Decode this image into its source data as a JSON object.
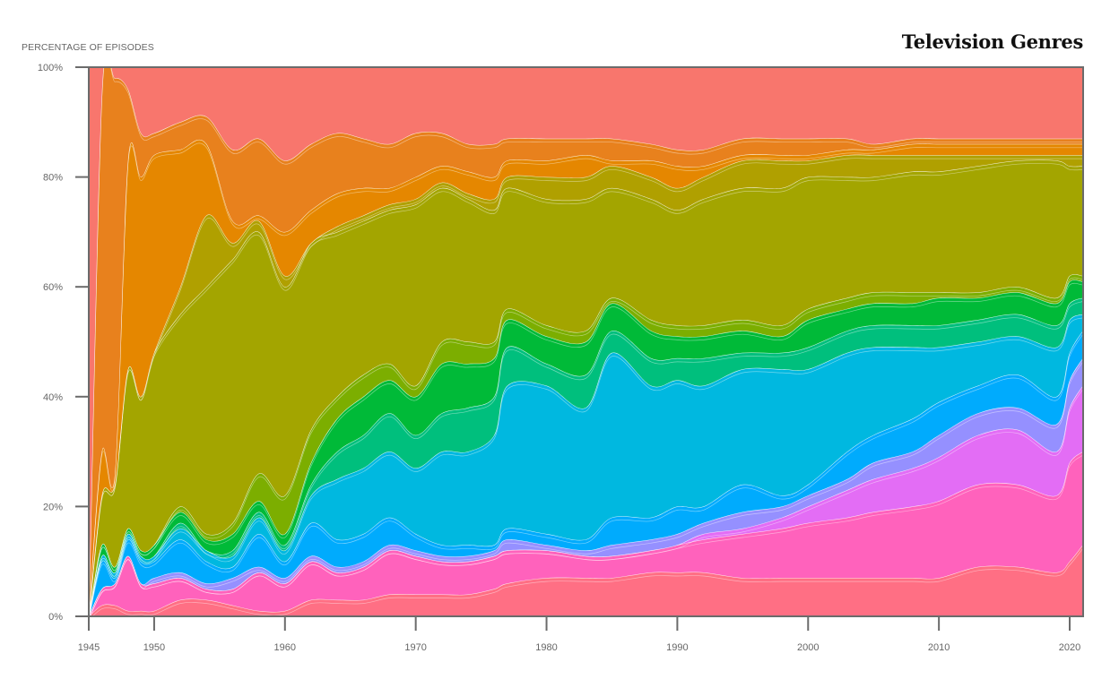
{
  "chart_data": {
    "type": "area",
    "title": "Television Genres",
    "subtitle": "",
    "ylabel": "PERCENTAGE OF EPISODES",
    "xlabel": "",
    "xlim": [
      1945,
      2021
    ],
    "ylim": [
      0,
      100
    ],
    "grid": false,
    "legend": "none",
    "x_ticks": [
      1945,
      1950,
      1960,
      1970,
      1980,
      1990,
      2000,
      2010,
      2020
    ],
    "y_ticks": [
      "0%",
      "20%",
      "40%",
      "60%",
      "80%",
      "100%"
    ],
    "stacking": "100% stacked streams (bands listed bottom to top); values are cumulative upper-boundary percentages",
    "x": [
      1945,
      1946,
      1947,
      1948,
      1949,
      1950,
      1952,
      1954,
      1956,
      1958,
      1960,
      1962,
      1964,
      1966,
      1968,
      1970,
      1972,
      1974,
      1976,
      1977,
      1980,
      1983,
      1985,
      1988,
      1990,
      1992,
      1995,
      1998,
      2000,
      2003,
      2005,
      2008,
      2010,
      2013,
      2016,
      2019,
      2020,
      2021
    ],
    "series": [
      {
        "name": "coral-red band",
        "color": "#ff6f84",
        "upper": [
          0,
          2,
          2,
          1,
          1,
          1,
          3,
          3,
          2,
          1,
          1,
          3,
          3,
          3,
          4,
          4,
          4,
          4,
          5,
          6,
          7,
          7,
          7,
          8,
          8,
          8,
          7,
          7,
          7,
          7,
          7,
          7,
          7,
          9,
          9,
          8,
          10,
          13
        ]
      },
      {
        "name": "pink band",
        "color": "#ff62bc",
        "upper": [
          0,
          5,
          6,
          11,
          6,
          6,
          7,
          5,
          5,
          8,
          6,
          10,
          8,
          9,
          12,
          11,
          10,
          10,
          11,
          12,
          12,
          11,
          11,
          12,
          13,
          14,
          15,
          16,
          17,
          18,
          19,
          20,
          21,
          24,
          24,
          22,
          28,
          30
        ]
      },
      {
        "name": "magenta band",
        "color": "#e36df5",
        "upper": [
          0,
          5,
          6,
          11,
          6,
          6,
          7,
          5,
          5,
          8,
          6,
          10,
          8,
          9,
          12,
          11,
          10,
          10,
          11,
          12,
          12,
          11,
          11,
          12,
          13,
          15,
          16,
          18,
          20,
          23,
          25,
          27,
          29,
          33,
          34,
          30,
          38,
          42
        ]
      },
      {
        "name": "lavender band",
        "color": "#9590ff",
        "upper": [
          0,
          5,
          6,
          11,
          6,
          7,
          8,
          6,
          7,
          9,
          7,
          11,
          9,
          10,
          13,
          12,
          11,
          11,
          12,
          14,
          13,
          12,
          13,
          14,
          15,
          17,
          19,
          20,
          22,
          25,
          28,
          30,
          33,
          37,
          38,
          35,
          43,
          47
        ]
      },
      {
        "name": "sky-blue band",
        "color": "#00abfd",
        "upper": [
          0,
          10,
          7,
          14,
          10,
          10,
          14,
          10,
          9,
          15,
          10,
          17,
          14,
          15,
          18,
          15,
          13,
          13,
          13,
          16,
          15,
          14,
          18,
          18,
          20,
          20,
          24,
          22,
          24,
          30,
          33,
          36,
          39,
          42,
          44,
          40,
          48,
          52
        ]
      },
      {
        "name": "cyan band",
        "color": "#00b8e0",
        "upper": [
          0,
          11,
          8,
          15,
          11,
          11,
          16,
          12,
          11,
          18,
          12,
          22,
          25,
          27,
          30,
          27,
          30,
          30,
          33,
          42,
          42,
          38,
          48,
          42,
          43,
          42,
          45,
          45,
          45,
          48,
          49,
          49,
          49,
          50,
          51,
          49,
          54,
          55
        ]
      },
      {
        "name": "teal-green band",
        "color": "#00bf7d",
        "upper": [
          0,
          11,
          8,
          15,
          11,
          11,
          17,
          12,
          12,
          19,
          13,
          24,
          30,
          33,
          37,
          33,
          37,
          38,
          40,
          49,
          46,
          44,
          52,
          47,
          47,
          47,
          48,
          48,
          49,
          52,
          53,
          53,
          53,
          54,
          55,
          53,
          57,
          58
        ]
      },
      {
        "name": "green band",
        "color": "#00ba38",
        "upper": [
          0,
          13,
          9,
          16,
          12,
          13,
          19,
          14,
          15,
          21,
          15,
          28,
          36,
          40,
          43,
          40,
          46,
          46,
          47,
          54,
          51,
          50,
          57,
          52,
          51,
          51,
          52,
          51,
          54,
          56,
          57,
          57,
          58,
          58,
          59,
          57,
          61,
          61
        ]
      },
      {
        "name": "yellow-green band",
        "color": "#7cae00",
        "upper": [
          0,
          13,
          9,
          16,
          12,
          13,
          20,
          15,
          17,
          26,
          22,
          34,
          40,
          44,
          46,
          42,
          50,
          50,
          50,
          56,
          53,
          52,
          58,
          54,
          53,
          53,
          54,
          53,
          56,
          58,
          59,
          59,
          59,
          59,
          60,
          58,
          62,
          62
        ]
      },
      {
        "name": "olive band",
        "color": "#a3a500",
        "upper": [
          0,
          22,
          24,
          45,
          40,
          48,
          55,
          60,
          65,
          70,
          60,
          68,
          70,
          72,
          74,
          75,
          78,
          76,
          74,
          78,
          76,
          76,
          78,
          76,
          74,
          76,
          78,
          78,
          80,
          80,
          80,
          81,
          81,
          82,
          83,
          83,
          82,
          82
        ]
      },
      {
        "name": "mustard band",
        "color": "#b0a000",
        "upper": [
          0,
          22,
          24,
          45,
          40,
          48,
          60,
          73,
          68,
          72,
          62,
          68,
          71,
          73,
          75,
          76,
          79,
          77,
          76,
          80,
          80,
          80,
          82,
          80,
          78,
          80,
          83,
          83,
          83,
          84,
          84,
          84,
          84,
          84,
          84,
          84,
          84,
          84
        ]
      },
      {
        "name": "orange band",
        "color": "#e58700",
        "upper": [
          0,
          30,
          26,
          83,
          80,
          84,
          85,
          86,
          72,
          73,
          70,
          74,
          77,
          78,
          78,
          80,
          82,
          81,
          80,
          83,
          83,
          84,
          83,
          83,
          82,
          82,
          84,
          84,
          84,
          85,
          85,
          86,
          86,
          86,
          86,
          86,
          86,
          86
        ]
      },
      {
        "name": "dark-orange band",
        "color": "#e8811d",
        "upper": [
          0,
          95,
          98,
          96,
          88,
          88,
          90,
          91,
          85,
          87,
          83,
          86,
          88,
          87,
          86,
          88,
          88,
          86,
          86,
          87,
          87,
          87,
          87,
          86,
          85,
          85,
          87,
          87,
          87,
          87,
          86,
          87,
          87,
          87,
          87,
          87,
          87,
          87
        ]
      },
      {
        "name": "salmon band",
        "color": "#f8766d",
        "upper": [
          100,
          100,
          100,
          100,
          100,
          100,
          100,
          100,
          100,
          100,
          100,
          100,
          100,
          100,
          100,
          100,
          100,
          100,
          100,
          100,
          100,
          100,
          100,
          100,
          100,
          100,
          100,
          100,
          100,
          100,
          100,
          100,
          100,
          100,
          100,
          100,
          100,
          100
        ]
      }
    ]
  },
  "axes": {
    "y_title": "PERCENTAGE OF EPISODES",
    "title": "Television Genres"
  }
}
